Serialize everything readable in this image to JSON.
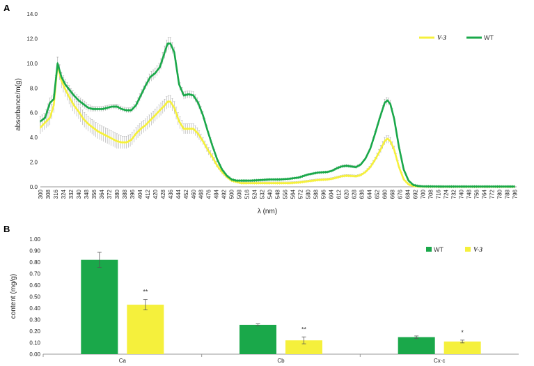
{
  "chart_data": [
    {
      "type": "line",
      "panel_label": "A",
      "xlabel": "λ (nm)",
      "ylabel": "absorbance/m(g)",
      "xlim": [
        300,
        798
      ],
      "ylim": [
        0,
        14
      ],
      "x_ticks": [
        300,
        308,
        316,
        324,
        332,
        340,
        348,
        356,
        364,
        372,
        380,
        388,
        396,
        404,
        412,
        420,
        428,
        436,
        444,
        452,
        460,
        468,
        476,
        484,
        492,
        500,
        508,
        516,
        524,
        532,
        540,
        548,
        556,
        564,
        572,
        580,
        588,
        596,
        604,
        612,
        620,
        628,
        636,
        644,
        652,
        660,
        668,
        676,
        684,
        692,
        700,
        708,
        716,
        724,
        732,
        740,
        748,
        756,
        764,
        772,
        780,
        788,
        796
      ],
      "y_ticks": [
        "0.0",
        "2.0",
        "4.0",
        "6.0",
        "8.0",
        "10.0",
        "12.0",
        "14.0"
      ],
      "legend_position": "top-right",
      "colors": {
        "V-3": "#f5f03c",
        "WT": "#1aa84a",
        "error": "#a9a9a9"
      },
      "series": [
        {
          "name": "V-3",
          "x": [
            300,
            305,
            310,
            314,
            318,
            322,
            326,
            330,
            335,
            340,
            345,
            350,
            355,
            360,
            365,
            370,
            375,
            380,
            385,
            390,
            395,
            400,
            405,
            410,
            415,
            420,
            425,
            430,
            433,
            436,
            440,
            445,
            450,
            455,
            460,
            465,
            470,
            475,
            480,
            485,
            490,
            495,
            500,
            505,
            510,
            515,
            520,
            530,
            540,
            550,
            560,
            570,
            580,
            590,
            600,
            605,
            610,
            615,
            620,
            625,
            630,
            635,
            640,
            645,
            650,
            655,
            660,
            663,
            666,
            670,
            675,
            680,
            685,
            690,
            695,
            700,
            720,
            740,
            760,
            780,
            796
          ],
          "y": [
            4.8,
            5.2,
            5.6,
            6.6,
            9.9,
            8.6,
            7.9,
            7.3,
            6.6,
            6.1,
            5.5,
            5.1,
            4.8,
            4.5,
            4.3,
            4.1,
            3.9,
            3.7,
            3.6,
            3.6,
            3.8,
            4.3,
            4.7,
            5.0,
            5.4,
            5.8,
            6.2,
            6.6,
            6.9,
            6.9,
            6.4,
            5.3,
            4.7,
            4.7,
            4.7,
            4.3,
            3.7,
            3.0,
            2.4,
            1.7,
            1.2,
            0.8,
            0.5,
            0.4,
            0.3,
            0.3,
            0.3,
            0.3,
            0.3,
            0.3,
            0.3,
            0.35,
            0.45,
            0.55,
            0.6,
            0.65,
            0.75,
            0.85,
            0.9,
            0.88,
            0.85,
            0.95,
            1.2,
            1.6,
            2.2,
            2.9,
            3.7,
            3.9,
            3.7,
            3.0,
            1.6,
            0.6,
            0.2,
            0.07,
            0.03,
            0.02,
            0.01,
            0.01,
            0.01,
            0.01,
            0.01
          ],
          "error": [
            0.5,
            0.5,
            0.6,
            0.6,
            0.6,
            0.6,
            0.6,
            0.6,
            0.6,
            0.6,
            0.6,
            0.6,
            0.6,
            0.6,
            0.6,
            0.6,
            0.6,
            0.6,
            0.5,
            0.5,
            0.5,
            0.5,
            0.5,
            0.5,
            0.5,
            0.5,
            0.5,
            0.5,
            0.5,
            0.5,
            0.5,
            0.5,
            0.4,
            0.4,
            0.4,
            0.4,
            0.3,
            0.3,
            0.3,
            0.2,
            0.2,
            0.15,
            0.1,
            0.1,
            0.1,
            0.1,
            0.1,
            0.1,
            0.1,
            0.1,
            0.1,
            0.1,
            0.1,
            0.1,
            0.1,
            0.1,
            0.1,
            0.1,
            0.1,
            0.1,
            0.1,
            0.1,
            0.1,
            0.15,
            0.2,
            0.3,
            0.3,
            0.3,
            0.3,
            0.3,
            0.2,
            0.1,
            0.05,
            0.02,
            0.01,
            0.01,
            0.01,
            0.01,
            0.01,
            0.01,
            0.01
          ]
        },
        {
          "name": "WT",
          "x": [
            300,
            305,
            310,
            314,
            318,
            322,
            326,
            330,
            335,
            340,
            345,
            350,
            355,
            360,
            365,
            370,
            375,
            380,
            385,
            390,
            395,
            400,
            405,
            410,
            415,
            420,
            425,
            430,
            433,
            436,
            440,
            445,
            450,
            455,
            460,
            465,
            470,
            475,
            480,
            485,
            490,
            495,
            500,
            505,
            510,
            515,
            520,
            530,
            540,
            550,
            560,
            570,
            580,
            590,
            600,
            605,
            610,
            615,
            620,
            625,
            630,
            635,
            640,
            645,
            650,
            655,
            660,
            663,
            666,
            670,
            675,
            680,
            685,
            690,
            695,
            700,
            720,
            740,
            760,
            780,
            796
          ],
          "y": [
            5.3,
            5.6,
            6.8,
            7.1,
            10.0,
            8.9,
            8.3,
            7.9,
            7.4,
            7.0,
            6.7,
            6.4,
            6.3,
            6.3,
            6.3,
            6.4,
            6.5,
            6.5,
            6.3,
            6.2,
            6.2,
            6.6,
            7.4,
            8.2,
            8.9,
            9.2,
            9.7,
            10.9,
            11.6,
            11.6,
            10.9,
            8.3,
            7.4,
            7.5,
            7.4,
            6.8,
            5.8,
            4.5,
            3.3,
            2.2,
            1.4,
            0.9,
            0.6,
            0.5,
            0.5,
            0.5,
            0.5,
            0.55,
            0.6,
            0.6,
            0.65,
            0.75,
            1.0,
            1.15,
            1.2,
            1.3,
            1.5,
            1.65,
            1.7,
            1.65,
            1.6,
            1.8,
            2.3,
            3.1,
            4.3,
            5.6,
            6.8,
            7.0,
            6.7,
            5.5,
            3.2,
            1.4,
            0.5,
            0.15,
            0.07,
            0.04,
            0.02,
            0.02,
            0.02,
            0.02,
            0.02
          ],
          "error": [
            0.4,
            0.4,
            0.4,
            0.4,
            0.5,
            0.4,
            0.4,
            0.3,
            0.3,
            0.3,
            0.3,
            0.3,
            0.2,
            0.2,
            0.2,
            0.2,
            0.2,
            0.2,
            0.2,
            0.2,
            0.2,
            0.3,
            0.3,
            0.3,
            0.4,
            0.4,
            0.4,
            0.5,
            0.5,
            0.5,
            0.4,
            0.3,
            0.3,
            0.3,
            0.3,
            0.3,
            0.3,
            0.2,
            0.2,
            0.15,
            0.1,
            0.1,
            0.05,
            0.05,
            0.05,
            0.05,
            0.05,
            0.05,
            0.05,
            0.05,
            0.05,
            0.05,
            0.05,
            0.05,
            0.05,
            0.05,
            0.1,
            0.1,
            0.1,
            0.1,
            0.1,
            0.1,
            0.1,
            0.1,
            0.2,
            0.2,
            0.3,
            0.3,
            0.3,
            0.2,
            0.2,
            0.1,
            0.05,
            0.02,
            0.02,
            0.02,
            0.01,
            0.01,
            0.01,
            0.01,
            0.01
          ]
        }
      ]
    },
    {
      "type": "bar",
      "panel_label": "B",
      "xlabel": "",
      "ylabel": "content (mg/g)",
      "ylim": [
        0,
        1.0
      ],
      "y_ticks": [
        "0.00",
        "0.10",
        "0.20",
        "0.30",
        "0.40",
        "0.50",
        "0.60",
        "0.70",
        "0.80",
        "0.90",
        "1.00"
      ],
      "categories": [
        "Ca",
        "Cb",
        "Cx·c"
      ],
      "legend_position": "top-right",
      "colors": {
        "WT": "#1aa84a",
        "V-3": "#f5f03c"
      },
      "series": [
        {
          "name": "WT",
          "values": [
            0.82,
            0.255,
            0.148
          ],
          "error": [
            0.065,
            0.008,
            0.01
          ],
          "labels": [
            "",
            "",
            ""
          ]
        },
        {
          "name": "V-3",
          "values": [
            0.43,
            0.12,
            0.11
          ],
          "error": [
            0.045,
            0.03,
            0.012
          ],
          "labels": [
            "**",
            "**",
            "*"
          ]
        }
      ]
    }
  ]
}
